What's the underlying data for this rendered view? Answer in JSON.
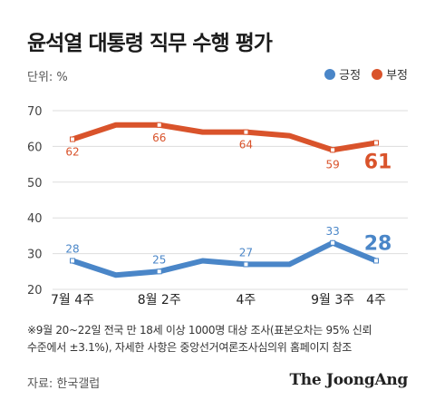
{
  "header": {
    "title": "윤석열 대통령 직무 수행 평가",
    "unit": "단위: %"
  },
  "legend": [
    {
      "label": "긍정",
      "color": "#4a86c8"
    },
    {
      "label": "부정",
      "color": "#d9532b"
    }
  ],
  "chart_data": {
    "type": "line",
    "x": [
      0,
      1,
      2,
      3,
      4,
      5,
      6,
      7
    ],
    "categories": [
      "7월 4주",
      "8월 2주",
      "4주",
      "9월 3주",
      "4주"
    ],
    "ylim": [
      20,
      70
    ],
    "yticks": [
      20,
      30,
      40,
      50,
      60,
      70
    ],
    "grid": true,
    "series": [
      {
        "name": "부정",
        "color": "#d9532b",
        "values": [
          62,
          66,
          66,
          64,
          64,
          63,
          59,
          61
        ],
        "labels": [
          {
            "i": 0,
            "text": "62"
          },
          {
            "i": 2,
            "text": "66"
          },
          {
            "i": 4,
            "text": "64"
          },
          {
            "i": 6,
            "text": "59"
          }
        ],
        "final": "61"
      },
      {
        "name": "긍정",
        "color": "#4a86c8",
        "values": [
          28,
          24,
          25,
          28,
          27,
          27,
          33,
          28
        ],
        "labels": [
          {
            "i": 0,
            "text": "28"
          },
          {
            "i": 2,
            "text": "25"
          },
          {
            "i": 4,
            "text": "27"
          },
          {
            "i": 6,
            "text": "33"
          }
        ],
        "final": "28"
      }
    ]
  },
  "footnote": {
    "line1": "※9월 20~22일 전국 만 18세 이상 1000명 대상 조사(표본오차는 95% 신뢰",
    "line2": "수준에서 ±3.1%), 자세한 사항은 중앙선거여론조사심의위 홈페이지 참조"
  },
  "source": "자료: 한국갤럽",
  "brand": "The JoongAng"
}
